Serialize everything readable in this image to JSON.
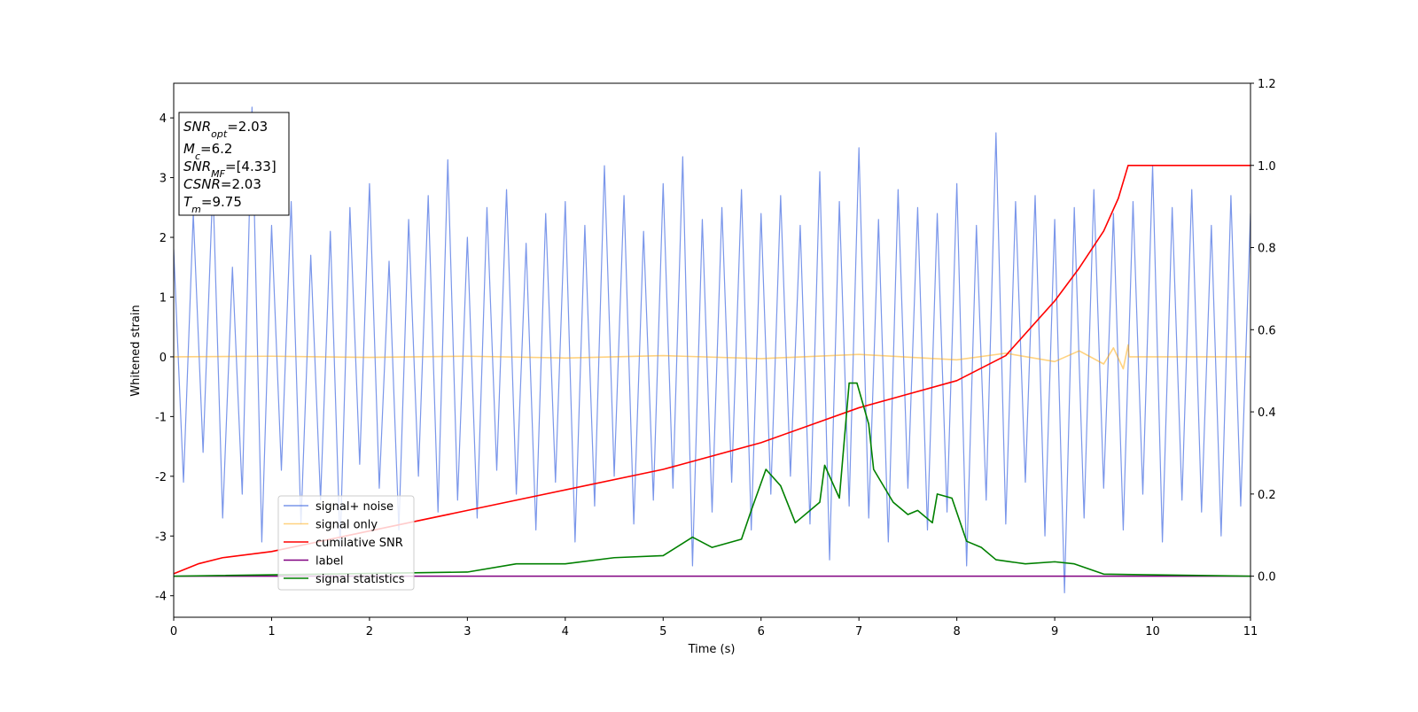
{
  "chart_data": {
    "type": "line",
    "xlabel": "Time (s)",
    "ylabel": "Whitened strain",
    "xlim": [
      0,
      11
    ],
    "ylim": [
      -4.36,
      4.58
    ],
    "y2lim": [
      -0.1,
      1.2
    ],
    "xticks": [
      0,
      1,
      2,
      3,
      4,
      5,
      6,
      7,
      8,
      9,
      10,
      11
    ],
    "yticks": [
      -4,
      -3,
      -2,
      -1,
      0,
      1,
      2,
      3,
      4
    ],
    "y2ticks": [
      {
        "value": 0,
        "label": "0.0"
      },
      {
        "value": 0.2,
        "label": "0.2"
      },
      {
        "value": 0.4,
        "label": "0.4"
      },
      {
        "value": 0.6,
        "label": "0.6"
      },
      {
        "value": 0.8,
        "label": "0.8"
      },
      {
        "value": 1.0,
        "label": "1.0"
      },
      {
        "value": 1.2,
        "label": "1.2"
      }
    ],
    "legend": "lower left",
    "annotation": [
      {
        "var": "SNR",
        "sub": "opt",
        "text": "=2.03"
      },
      {
        "var": "M",
        "sub": "c",
        "text": "=6.2"
      },
      {
        "var": "SNR",
        "sub": "MF",
        "text": "=[4.33]"
      },
      {
        "var": "CSNR",
        "text": "=2.03"
      },
      {
        "var": "T",
        "sub": "m",
        "text": "=9.75"
      }
    ],
    "series": [
      {
        "name": "signal+ noise",
        "color": "#4169e1",
        "alpha": 0.7,
        "x": [
          0,
          0.1,
          0.2,
          0.3,
          0.4,
          0.5,
          0.6,
          0.7,
          0.8,
          0.9,
          1,
          1.1,
          1.2,
          1.3,
          1.4,
          1.5,
          1.6,
          1.7,
          1.8,
          1.9,
          2,
          2.1,
          2.2,
          2.3,
          2.4,
          2.5,
          2.6,
          2.7,
          2.8,
          2.9,
          3,
          3.1,
          3.2,
          3.3,
          3.4,
          3.5,
          3.6,
          3.7,
          3.8,
          3.9,
          4,
          4.1,
          4.2,
          4.3,
          4.4,
          4.5,
          4.6,
          4.7,
          4.8,
          4.9,
          5,
          5.1,
          5.2,
          5.3,
          5.4,
          5.5,
          5.6,
          5.7,
          5.8,
          5.9,
          6,
          6.1,
          6.2,
          6.3,
          6.4,
          6.5,
          6.6,
          6.7,
          6.8,
          6.9,
          7,
          7.1,
          7.2,
          7.3,
          7.4,
          7.5,
          7.6,
          7.7,
          7.8,
          7.9,
          8,
          8.1,
          8.2,
          8.3,
          8.4,
          8.5,
          8.6,
          8.7,
          8.8,
          8.9,
          9,
          9.1,
          9.2,
          9.3,
          9.4,
          9.5,
          9.6,
          9.7,
          9.8,
          9.9,
          10,
          10.1,
          10.2,
          10.3,
          10.4,
          10.5,
          10.6,
          10.7,
          10.8,
          10.9,
          11
        ],
        "values": [
          1.8,
          -2.1,
          2.4,
          -1.6,
          2.9,
          -2.7,
          1.5,
          -2.3,
          4.18,
          -3.1,
          2.2,
          -1.9,
          2.6,
          -2.8,
          1.7,
          -2.4,
          2.1,
          -3.2,
          2.5,
          -1.8,
          2.9,
          -2.2,
          1.6,
          -2.9,
          2.3,
          -2.0,
          2.7,
          -2.6,
          3.3,
          -2.4,
          2.0,
          -2.7,
          2.5,
          -1.9,
          2.8,
          -2.3,
          1.9,
          -2.9,
          2.4,
          -2.1,
          2.6,
          -3.1,
          2.2,
          -2.5,
          3.2,
          -2.0,
          2.7,
          -2.8,
          2.1,
          -2.4,
          2.9,
          -2.2,
          3.35,
          -3.5,
          2.3,
          -2.6,
          2.5,
          -2.1,
          2.8,
          -2.9,
          2.4,
          -2.3,
          2.7,
          -2.0,
          2.2,
          -2.8,
          3.1,
          -3.4,
          2.6,
          -2.5,
          3.5,
          -2.7,
          2.3,
          -3.1,
          2.8,
          -2.2,
          2.5,
          -2.9,
          2.4,
          -2.6,
          2.9,
          -3.5,
          2.2,
          -2.4,
          3.75,
          -2.8,
          2.6,
          -2.1,
          2.7,
          -3.0,
          2.3,
          -3.95,
          2.5,
          -2.7,
          2.8,
          -2.2,
          2.4,
          -2.9,
          2.6,
          -2.3,
          3.2,
          -3.1,
          2.5,
          -2.4,
          2.8,
          -2.6,
          2.2,
          -3.0,
          2.7,
          -2.5,
          2.4
        ]
      },
      {
        "name": "signal only",
        "color": "#ffa500",
        "alpha": 0.5,
        "x": [
          0,
          1,
          2,
          3,
          4,
          5,
          6,
          7,
          8,
          8.5,
          9,
          9.25,
          9.5,
          9.6,
          9.7,
          9.75,
          9.76,
          11
        ],
        "values": [
          0,
          0.01,
          -0.01,
          0.01,
          -0.02,
          0.02,
          -0.03,
          0.04,
          -0.05,
          0.06,
          -0.08,
          0.1,
          -0.12,
          0.15,
          -0.2,
          0.2,
          0,
          0
        ]
      },
      {
        "name": "cumilative SNR",
        "color": "#ff0000",
        "alpha": 1,
        "axis": "y2",
        "x": [
          0,
          0.25,
          0.5,
          1,
          2,
          3,
          4,
          5,
          6,
          7,
          8,
          8.5,
          9,
          9.25,
          9.5,
          9.65,
          9.75,
          11
        ],
        "values": [
          0.006,
          0.03,
          0.045,
          0.06,
          0.11,
          0.16,
          0.21,
          0.26,
          0.325,
          0.41,
          0.476,
          0.537,
          0.67,
          0.75,
          0.84,
          0.92,
          1.0,
          1.0
        ]
      },
      {
        "name": "label",
        "color": "#800080",
        "alpha": 1,
        "axis": "y2",
        "x": [
          0,
          11
        ],
        "values": [
          0,
          0
        ]
      },
      {
        "name": "signal statistics",
        "color": "#008000",
        "alpha": 1,
        "axis": "y2",
        "x": [
          0,
          3,
          3.5,
          4,
          4.5,
          5,
          5.3,
          5.5,
          5.8,
          5.9,
          6.05,
          6.2,
          6.35,
          6.6,
          6.65,
          6.8,
          6.9,
          6.98,
          7.1,
          7.15,
          7.35,
          7.5,
          7.6,
          7.75,
          7.8,
          7.95,
          8.1,
          8.25,
          8.4,
          8.7,
          9.0,
          9.2,
          9.5,
          11
        ],
        "values": [
          0,
          0.01,
          0.03,
          0.03,
          0.045,
          0.05,
          0.095,
          0.07,
          0.09,
          0.16,
          0.26,
          0.22,
          0.13,
          0.18,
          0.27,
          0.19,
          0.47,
          0.47,
          0.37,
          0.26,
          0.18,
          0.15,
          0.16,
          0.13,
          0.2,
          0.19,
          0.085,
          0.07,
          0.04,
          0.03,
          0.035,
          0.03,
          0.005,
          0
        ]
      }
    ]
  }
}
